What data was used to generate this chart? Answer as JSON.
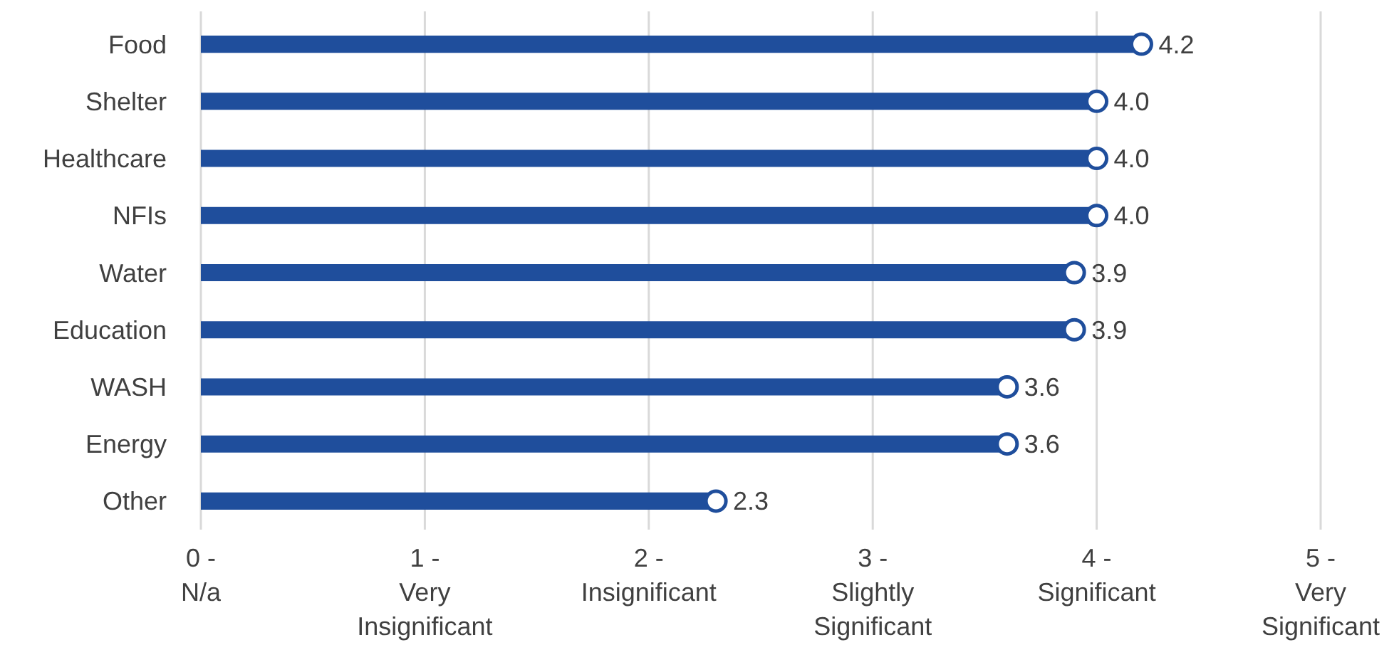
{
  "chart_data": {
    "type": "lollipop",
    "orientation": "horizontal",
    "categories": [
      "Food",
      "Shelter",
      "Healthcare",
      "NFIs",
      "Water",
      "Education",
      "WASH",
      "Energy",
      "Other"
    ],
    "values": [
      4.2,
      4.0,
      4.0,
      4.0,
      3.9,
      3.9,
      3.6,
      3.6,
      2.3
    ],
    "value_labels": [
      "4.2",
      "4.0",
      "4.0",
      "4.0",
      "3.9",
      "3.9",
      "3.6",
      "3.6",
      "2.3"
    ],
    "color": "#1f4e9c",
    "xlim": [
      0,
      5
    ],
    "xticks": [
      {
        "value": 0,
        "label": "0 -\nN/a"
      },
      {
        "value": 1,
        "label": "1 -\nVery\nInsignificant"
      },
      {
        "value": 2,
        "label": "2 -\nInsignificant"
      },
      {
        "value": 3,
        "label": "3 -\nSlightly\nSignificant"
      },
      {
        "value": 4,
        "label": "4 -\nSignificant"
      },
      {
        "value": 5,
        "label": "5 -\nVery\nSignificant"
      }
    ],
    "grid": "x",
    "marker": "circle"
  }
}
